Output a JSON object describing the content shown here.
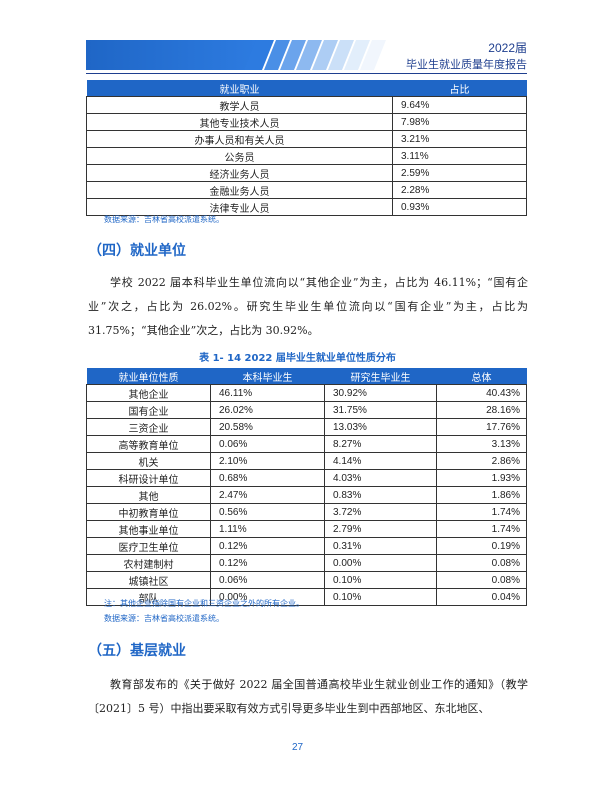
{
  "header": {
    "year": "2022届",
    "title": "毕业生就业质量年度报告"
  },
  "table1": {
    "headers": [
      "就业职业",
      "占比"
    ],
    "rows": [
      [
        "教学人员",
        "9.64%"
      ],
      [
        "其他专业技术人员",
        "7.98%"
      ],
      [
        "办事人员和有关人员",
        "3.21%"
      ],
      [
        "公务员",
        "3.11%"
      ],
      [
        "经济业务人员",
        "2.59%"
      ],
      [
        "金融业务人员",
        "2.28%"
      ],
      [
        "法律专业人员",
        "0.93%"
      ]
    ],
    "source": "数据来源：吉林省高校派遣系统。"
  },
  "section4": {
    "title": "（四）就业单位",
    "paragraph": "学校 2022 届本科毕业生单位流向以“其他企业”为主，占比为 46.11%；“国有企业”次之，占比为 26.02%。研究生毕业生单位流向以“国有企业”为主，占比为 31.75%；“其他企业”次之，占比为 30.92%。"
  },
  "table2": {
    "caption": "表 1- 14    2022 届毕业生就业单位性质分布",
    "headers": [
      "就业单位性质",
      "本科毕业生",
      "研究生毕业生",
      "总体"
    ],
    "rows": [
      [
        "其他企业",
        "46.11%",
        "30.92%",
        "40.43%"
      ],
      [
        "国有企业",
        "26.02%",
        "31.75%",
        "28.16%"
      ],
      [
        "三资企业",
        "20.58%",
        "13.03%",
        "17.76%"
      ],
      [
        "高等教育单位",
        "0.06%",
        "8.27%",
        "3.13%"
      ],
      [
        "机关",
        "2.10%",
        "4.14%",
        "2.86%"
      ],
      [
        "科研设计单位",
        "0.68%",
        "4.03%",
        "1.93%"
      ],
      [
        "其他",
        "2.47%",
        "0.83%",
        "1.86%"
      ],
      [
        "中初教育单位",
        "0.56%",
        "3.72%",
        "1.74%"
      ],
      [
        "其他事业单位",
        "1.11%",
        "2.79%",
        "1.74%"
      ],
      [
        "医疗卫生单位",
        "0.12%",
        "0.31%",
        "0.19%"
      ],
      [
        "农村建制村",
        "0.12%",
        "0.00%",
        "0.08%"
      ],
      [
        "城镇社区",
        "0.06%",
        "0.10%",
        "0.08%"
      ],
      [
        "部队",
        "0.00%",
        "0.10%",
        "0.04%"
      ]
    ],
    "note": "注：其他企业指除国有企业和三资企业之外的所有企业。",
    "source": "数据来源：吉林省高校派遣系统。"
  },
  "section5": {
    "title": "（五）基层就业",
    "paragraph": "教育部发布的《关于做好 2022 届全国普通高校毕业生就业创业工作的通知》（教学〔2021〕5 号）中指出要采取有效方式引导更多毕业生到中西部地区、东北地区、"
  },
  "page_number": "27",
  "colors": {
    "accent": "#1f66c6",
    "header_blue": "#1f3f8f"
  }
}
